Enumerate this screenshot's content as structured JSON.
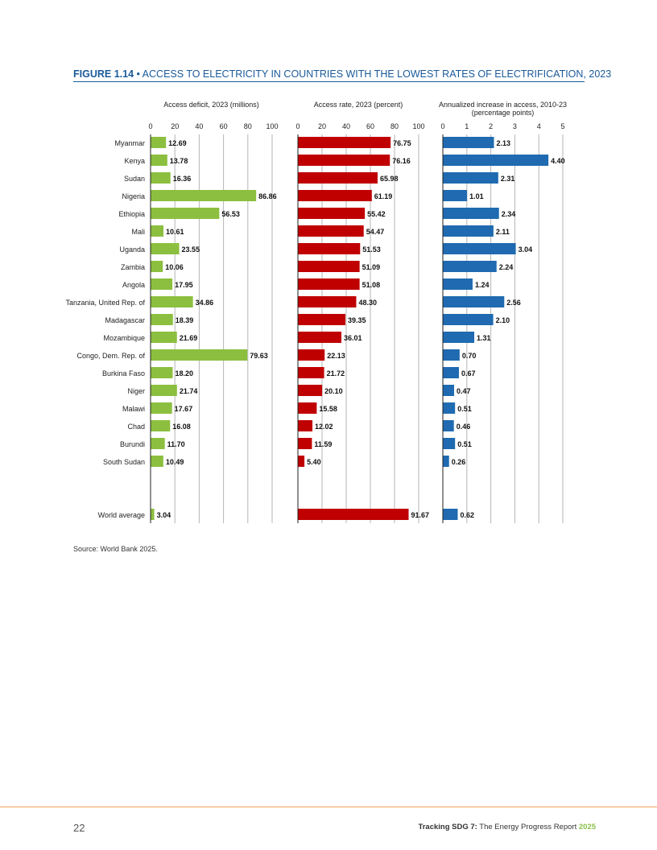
{
  "figure": {
    "number": "FIGURE 1.14",
    "separator": " • ",
    "title": "ACCESS TO ELECTRICITY IN COUNTRIES WITH THE LOWEST RATES OF ELECTRIFICATION, 2023"
  },
  "source": "Source: World Bank 2025.",
  "footer": {
    "page_number": "22",
    "running_title_bold": "Tracking SDG 7:",
    "running_title_rest": " The Energy Progress Report ",
    "running_title_year": "2025"
  },
  "colors": {
    "title_blue": "#1a5a9a",
    "deficit_green": "#8cbf3f",
    "rate_red": "#c00000",
    "increase_blue": "#1f6ab0"
  },
  "chart_data": {
    "type": "bar",
    "orientation": "horizontal",
    "categories": [
      "Myanmar",
      "Kenya",
      "Sudan",
      "Nigeria",
      "Ethiopia",
      "Mali",
      "Uganda",
      "Zambia",
      "Angola",
      "Tanzania, United Rep. of",
      "Madagascar",
      "Mozambique",
      "Congo, Dem. Rep. of",
      "Burkina Faso",
      "Niger",
      "Malawi",
      "Chad",
      "Burundi",
      "South Sudan",
      "World average"
    ],
    "series": [
      {
        "name": "Access deficit, 2023 (millions)",
        "values": [
          12.69,
          13.78,
          16.36,
          86.86,
          56.53,
          10.61,
          23.55,
          10.06,
          17.95,
          34.86,
          18.39,
          21.69,
          79.63,
          18.2,
          21.74,
          17.67,
          16.08,
          11.7,
          10.49,
          3.04
        ],
        "labels": [
          "12.69",
          "13.78",
          "16.36",
          "86.86",
          "56.53",
          "10.61",
          "23.55",
          "10.06",
          "17.95",
          "34.86",
          "18.39",
          "21.69",
          "79.63",
          "18.20",
          "21.74",
          "17.67",
          "16.08",
          "11.70",
          "10.49",
          "3.04"
        ],
        "xlim": [
          0,
          100
        ],
        "ticks": [
          "0",
          "20",
          "40",
          "60",
          "80",
          "100"
        ]
      },
      {
        "name": "Access rate, 2023 (percent)",
        "values": [
          76.75,
          76.16,
          65.98,
          61.19,
          55.42,
          54.47,
          51.53,
          51.09,
          51.08,
          48.3,
          39.35,
          36.01,
          22.13,
          21.72,
          20.1,
          15.58,
          12.02,
          11.59,
          5.4,
          91.67
        ],
        "labels": [
          "76.75",
          "76.16",
          "65.98",
          "61.19",
          "55.42",
          "54.47",
          "51.53",
          "51.09",
          "51.08",
          "48.30",
          "39.35",
          "36.01",
          "22.13",
          "21.72",
          "20.10",
          "15.58",
          "12.02",
          "11.59",
          "5.40",
          "91.67"
        ],
        "xlim": [
          0,
          100
        ],
        "ticks": [
          "0",
          "20",
          "40",
          "60",
          "80",
          "100"
        ]
      },
      {
        "name": "Annualized increase in access, 2010-23\n(percentage points)",
        "values": [
          2.13,
          4.4,
          2.31,
          1.01,
          2.34,
          2.11,
          3.04,
          2.24,
          1.24,
          2.56,
          2.1,
          1.31,
          0.7,
          0.67,
          0.47,
          0.51,
          0.46,
          0.51,
          0.26,
          0.62
        ],
        "labels": [
          "2.13",
          "4.40",
          "2.31",
          "1.01",
          "2.34",
          "2.11",
          "3.04",
          "2.24",
          "1.24",
          "2.56",
          "2.10",
          "1.31",
          "0.70",
          "0.67",
          "0.47",
          "0.51",
          "0.46",
          "0.51",
          "0.26",
          "0.62"
        ],
        "xlim": [
          0,
          5
        ],
        "ticks": [
          "0",
          "1",
          "2",
          "3",
          "4",
          "5"
        ]
      }
    ],
    "grid": true,
    "legend": "none"
  }
}
